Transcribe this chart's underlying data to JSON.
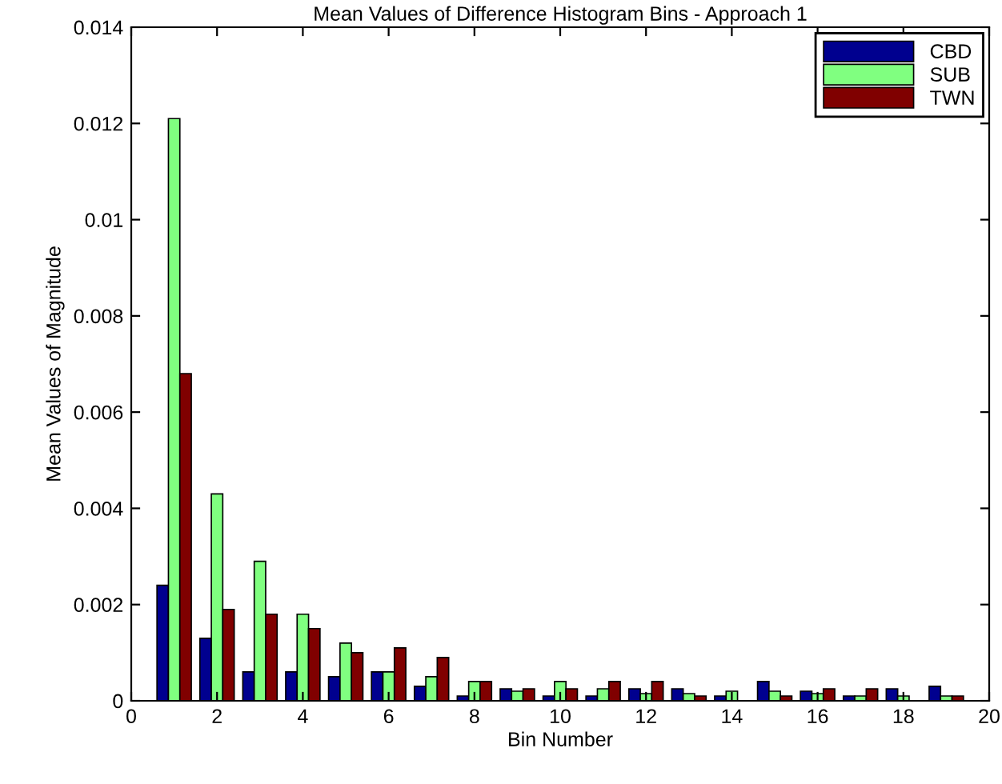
{
  "chart_data": {
    "type": "bar",
    "title": "Mean Values of Difference Histogram Bins - Approach 1",
    "xlabel": "Bin Number",
    "ylabel": "Mean Values of Magnitude",
    "x": [
      1,
      2,
      3,
      4,
      5,
      6,
      7,
      8,
      9,
      10,
      11,
      12,
      13,
      14,
      15,
      16,
      17,
      18,
      19
    ],
    "series": [
      {
        "name": "CBD",
        "color": "#00008f",
        "values": [
          0.0024,
          0.0013,
          0.0006,
          0.0006,
          0.0005,
          0.0006,
          0.0003,
          0.0001,
          0.00025,
          0.0001,
          0.0001,
          0.00025,
          0.00025,
          0.0001,
          0.0004,
          0.0002,
          0.0001,
          0.00025,
          0.0003
        ]
      },
      {
        "name": "SUB",
        "color": "#80ff80",
        "values": [
          0.0121,
          0.0043,
          0.0029,
          0.0018,
          0.0012,
          0.0006,
          0.0005,
          0.0004,
          0.0002,
          0.0004,
          0.00025,
          0.00015,
          0.00015,
          0.0002,
          0.0002,
          0.00015,
          0.0001,
          0.0001,
          0.0001
        ]
      },
      {
        "name": "TWN",
        "color": "#800000",
        "values": [
          0.0068,
          0.0019,
          0.0018,
          0.0015,
          0.001,
          0.0011,
          0.0009,
          0.0004,
          0.00025,
          0.00025,
          0.0004,
          0.0004,
          0.0001,
          null,
          0.0001,
          0.00025,
          0.00025,
          null,
          0.0001
        ]
      }
    ],
    "xlim": [
      0,
      20
    ],
    "xticks": [
      0,
      2,
      4,
      6,
      8,
      10,
      12,
      14,
      16,
      18,
      20
    ],
    "ylim": [
      0,
      0.014
    ],
    "yticks": [
      0,
      {
        "value": 0.002,
        "label": "0.002"
      },
      {
        "value": 0.004,
        "label": "0.004"
      },
      {
        "value": 0.006,
        "label": "0.006"
      },
      {
        "value": 0.008,
        "label": "0.008"
      },
      {
        "value": 0.01,
        "label": "0.01"
      },
      {
        "value": 0.012,
        "label": "0.012"
      },
      {
        "value": 0.014,
        "label": "0.014"
      }
    ],
    "grid": false,
    "legend": "top right"
  }
}
